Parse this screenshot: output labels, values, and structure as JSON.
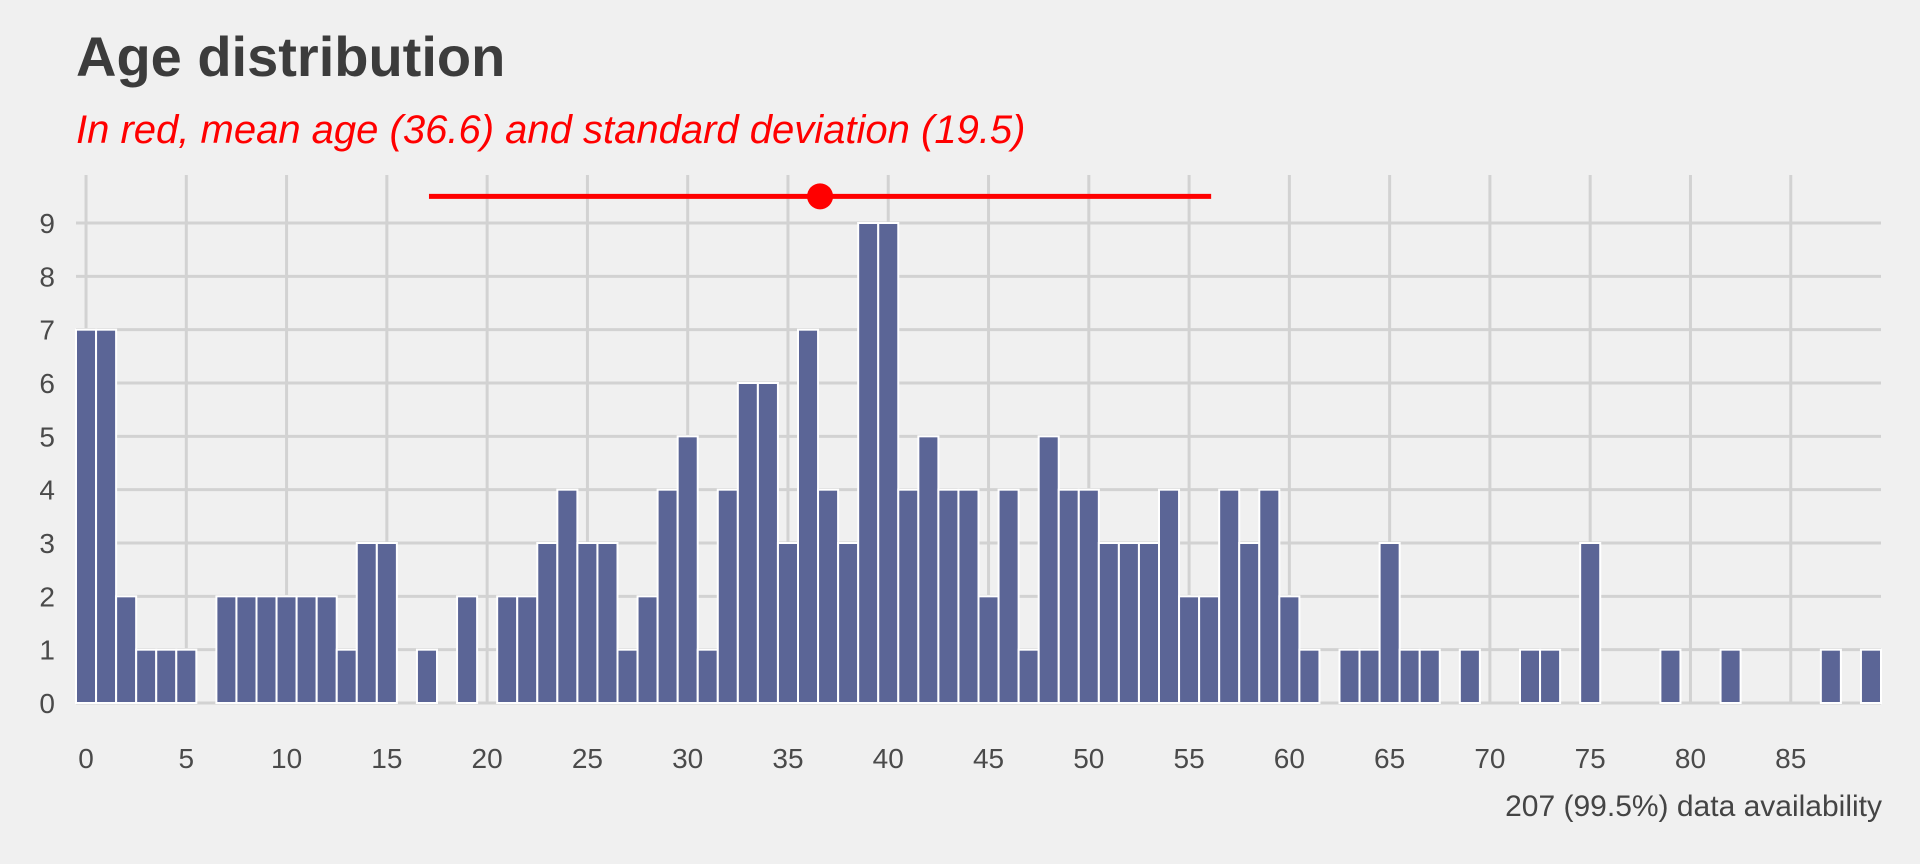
{
  "chart_data": {
    "type": "bar",
    "title": "Age distribution",
    "subtitle": "In red, mean age (36.6) and standard deviation (19.5)",
    "caption": "207 (99.5%) data availability",
    "xlabel": "",
    "ylabel": "",
    "xlim": [
      -0.5,
      89.5
    ],
    "ylim": [
      0,
      9.9
    ],
    "xticks": [
      0,
      5,
      10,
      15,
      20,
      25,
      30,
      35,
      40,
      45,
      50,
      55,
      60,
      65,
      70,
      75,
      80,
      85
    ],
    "yticks": [
      0,
      1,
      2,
      3,
      4,
      5,
      6,
      7,
      8,
      9
    ],
    "grid": true,
    "bar_color": "#5b6596",
    "bar_outline": "#ffffff",
    "x": [
      0,
      1,
      2,
      3,
      4,
      5,
      6,
      7,
      8,
      9,
      10,
      11,
      12,
      13,
      14,
      15,
      16,
      17,
      18,
      19,
      20,
      21,
      22,
      23,
      24,
      25,
      26,
      27,
      28,
      29,
      30,
      31,
      32,
      33,
      34,
      35,
      36,
      37,
      38,
      39,
      40,
      41,
      42,
      43,
      44,
      45,
      46,
      47,
      48,
      49,
      50,
      51,
      52,
      53,
      54,
      55,
      56,
      57,
      58,
      59,
      60,
      61,
      62,
      63,
      64,
      65,
      66,
      67,
      68,
      69,
      70,
      71,
      72,
      73,
      74,
      75,
      76,
      77,
      78,
      79,
      80,
      81,
      82,
      83,
      84,
      85,
      86,
      87,
      88,
      89
    ],
    "values": [
      7,
      7,
      2,
      1,
      1,
      1,
      0,
      2,
      2,
      2,
      2,
      2,
      2,
      1,
      3,
      3,
      0,
      1,
      0,
      2,
      0,
      2,
      2,
      3,
      4,
      3,
      3,
      1,
      2,
      4,
      5,
      1,
      4,
      6,
      6,
      3,
      7,
      4,
      3,
      9,
      9,
      4,
      5,
      4,
      4,
      2,
      4,
      1,
      5,
      4,
      4,
      3,
      3,
      3,
      4,
      2,
      2,
      4,
      3,
      4,
      2,
      1,
      0,
      1,
      1,
      3,
      1,
      1,
      0,
      1,
      0,
      0,
      1,
      1,
      0,
      3,
      0,
      0,
      0,
      1,
      0,
      0,
      1,
      0,
      0,
      0,
      0,
      1,
      0,
      1
    ],
    "annotation": {
      "color": "#ff0000",
      "mean": 36.6,
      "sd": 19.5,
      "interval": [
        17.1,
        56.1
      ],
      "y": 9.5
    }
  }
}
